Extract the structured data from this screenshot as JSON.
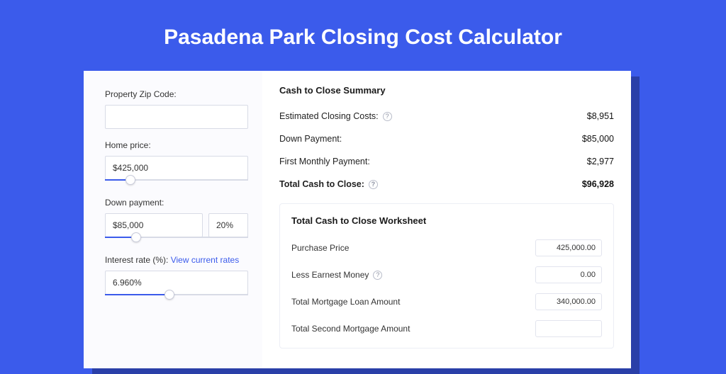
{
  "colors": {
    "page_bg": "#3B5BEB",
    "shadow": "#2a3fa8",
    "card_bg": "#ffffff",
    "left_bg": "#fbfbfe",
    "border": "#d8dbe6",
    "accent": "#3B5BEB",
    "text": "#1a1a1a",
    "subtle": "#8a8fa0"
  },
  "title": "Pasadena Park Closing Cost Calculator",
  "inputs": {
    "zip": {
      "label": "Property Zip Code:",
      "value": ""
    },
    "home_price": {
      "label": "Home price:",
      "value": "$425,000",
      "slider_pct": 18
    },
    "down_payment": {
      "label": "Down payment:",
      "value": "$85,000",
      "pct": "20%",
      "slider_pct": 22
    },
    "interest_rate": {
      "label": "Interest rate (%):",
      "link_text": "View current rates",
      "value": "6.960%",
      "slider_pct": 45
    }
  },
  "summary": {
    "title": "Cash to Close Summary",
    "rows": [
      {
        "label": "Estimated Closing Costs:",
        "help": true,
        "value": "$8,951",
        "bold": false
      },
      {
        "label": "Down Payment:",
        "help": false,
        "value": "$85,000",
        "bold": false
      },
      {
        "label": "First Monthly Payment:",
        "help": false,
        "value": "$2,977",
        "bold": false
      },
      {
        "label": "Total Cash to Close:",
        "help": true,
        "value": "$96,928",
        "bold": true
      }
    ]
  },
  "worksheet": {
    "title": "Total Cash to Close Worksheet",
    "rows": [
      {
        "label": "Purchase Price",
        "help": false,
        "value": "425,000.00"
      },
      {
        "label": "Less Earnest Money",
        "help": true,
        "value": "0.00"
      },
      {
        "label": "Total Mortgage Loan Amount",
        "help": false,
        "value": "340,000.00"
      },
      {
        "label": "Total Second Mortgage Amount",
        "help": false,
        "value": ""
      }
    ]
  }
}
